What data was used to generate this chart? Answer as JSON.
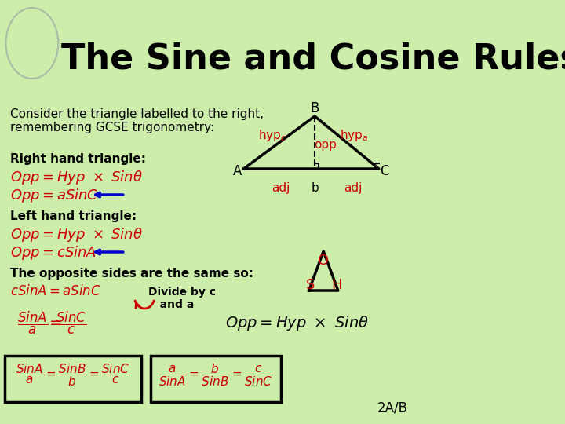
{
  "bg_color": "#cceeaa",
  "title": "The Sine and Cosine Rules",
  "title_color": "#000000",
  "title_fontsize": 32,
  "title_font": "Comic Sans MS",
  "body_font": "Comic Sans MS",
  "red_color": "#cc0000",
  "dark_color": "#000000",
  "blue_color": "#0000cc",
  "slide_label": "2A/B",
  "consider_text": "Consider the triangle labelled to the right,\nremembering GCSE trigonometry:",
  "right_hand_text": "Right hand triangle:",
  "left_hand_text": "Left hand triangle:",
  "opposite_text": "The opposite sides are the same so:"
}
